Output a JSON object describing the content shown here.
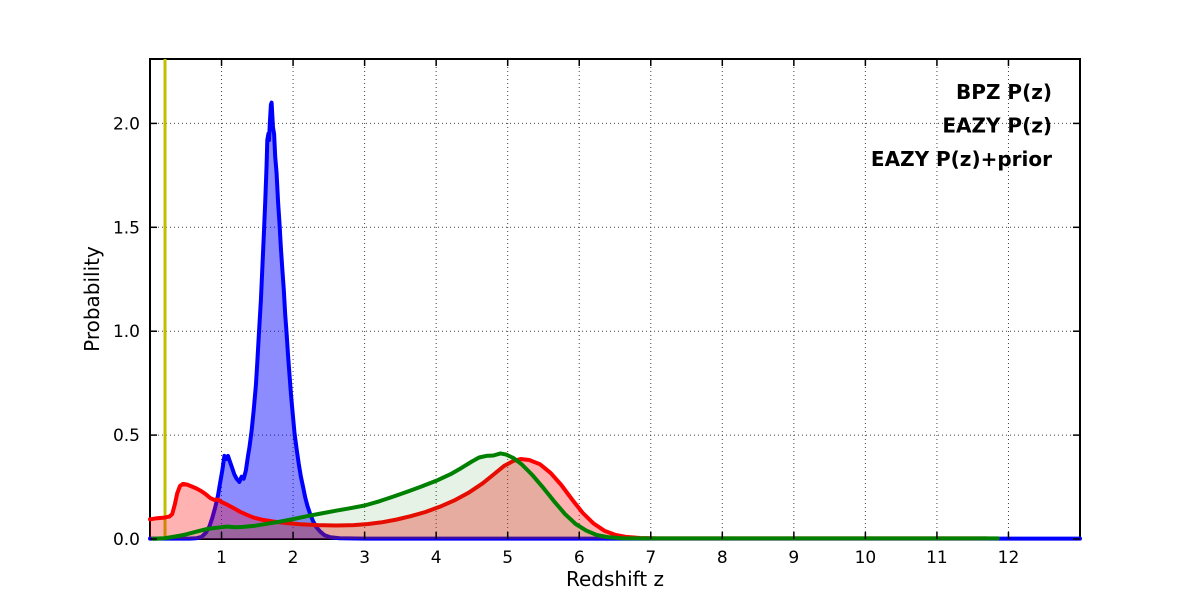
{
  "figure": {
    "background": "#ffffff",
    "frame_color": "#000000",
    "grid_color": "#444444"
  },
  "chart_data": {
    "type": "line",
    "title": "",
    "xlabel": "Redshift z",
    "ylabel": "Probability",
    "xlim": [
      0,
      13
    ],
    "ylim": [
      0,
      2.31
    ],
    "xticks": [
      1,
      2,
      3,
      4,
      5,
      6,
      7,
      8,
      9,
      10,
      11,
      12
    ],
    "yticks": [
      0.0,
      0.5,
      1.0,
      1.5,
      2.0
    ],
    "ytick_labels": [
      "0.0",
      "0.5",
      "1.0",
      "1.5",
      "2.0"
    ],
    "grid": "dotted",
    "legend_position": "top-right-inside-no-frame",
    "vline": {
      "x": 0.21,
      "color": "#bfbf00",
      "width": 3
    },
    "series": [
      {
        "name": "BPZ P(z)",
        "slug": "bpz-pz",
        "color": "#0000ff",
        "fill_opacity": 0.45,
        "line_width": 4,
        "points": [
          [
            0.0,
            0.002
          ],
          [
            0.55,
            0.002
          ],
          [
            0.65,
            0.004
          ],
          [
            0.72,
            0.01
          ],
          [
            0.78,
            0.03
          ],
          [
            0.83,
            0.06
          ],
          [
            0.87,
            0.1
          ],
          [
            0.91,
            0.15
          ],
          [
            0.95,
            0.21
          ],
          [
            0.98,
            0.27
          ],
          [
            1.01,
            0.33
          ],
          [
            1.04,
            0.4
          ],
          [
            1.07,
            0.385
          ],
          [
            1.09,
            0.4
          ],
          [
            1.12,
            0.37
          ],
          [
            1.15,
            0.34
          ],
          [
            1.18,
            0.31
          ],
          [
            1.21,
            0.29
          ],
          [
            1.25,
            0.275
          ],
          [
            1.28,
            0.3
          ],
          [
            1.31,
            0.29
          ],
          [
            1.34,
            0.33
          ],
          [
            1.37,
            0.4
          ],
          [
            1.39,
            0.44
          ],
          [
            1.42,
            0.52
          ],
          [
            1.45,
            0.62
          ],
          [
            1.48,
            0.74
          ],
          [
            1.5,
            0.85
          ],
          [
            1.52,
            0.97
          ],
          [
            1.55,
            1.15
          ],
          [
            1.57,
            1.3
          ],
          [
            1.59,
            1.45
          ],
          [
            1.61,
            1.62
          ],
          [
            1.63,
            1.8
          ],
          [
            1.64,
            1.92
          ],
          [
            1.655,
            1.95
          ],
          [
            1.665,
            1.92
          ],
          [
            1.675,
            2.0
          ],
          [
            1.69,
            2.09
          ],
          [
            1.7,
            2.1
          ],
          [
            1.71,
            2.04
          ],
          [
            1.72,
            1.98
          ],
          [
            1.735,
            1.95
          ],
          [
            1.75,
            1.84
          ],
          [
            1.77,
            1.76
          ],
          [
            1.79,
            1.62
          ],
          [
            1.81,
            1.52
          ],
          [
            1.83,
            1.4
          ],
          [
            1.85,
            1.3
          ],
          [
            1.87,
            1.2
          ],
          [
            1.89,
            1.08
          ],
          [
            1.91,
            0.99
          ],
          [
            1.93,
            0.88
          ],
          [
            1.95,
            0.79
          ],
          [
            1.97,
            0.7
          ],
          [
            1.99,
            0.62
          ],
          [
            2.02,
            0.51
          ],
          [
            2.05,
            0.43
          ],
          [
            2.08,
            0.36
          ],
          [
            2.11,
            0.3
          ],
          [
            2.14,
            0.25
          ],
          [
            2.17,
            0.2
          ],
          [
            2.2,
            0.16
          ],
          [
            2.24,
            0.12
          ],
          [
            2.28,
            0.085
          ],
          [
            2.33,
            0.055
          ],
          [
            2.38,
            0.035
          ],
          [
            2.44,
            0.018
          ],
          [
            2.52,
            0.008
          ],
          [
            2.65,
            0.004
          ],
          [
            3.0,
            0.002
          ],
          [
            13.0,
            0.002
          ]
        ]
      },
      {
        "name": "EAZY P(z)",
        "slug": "eazy-pz",
        "color": "#ff0000",
        "fill_opacity": 0.3,
        "line_width": 4,
        "points": [
          [
            0.0,
            0.095
          ],
          [
            0.1,
            0.1
          ],
          [
            0.2,
            0.103
          ],
          [
            0.27,
            0.108
          ],
          [
            0.31,
            0.12
          ],
          [
            0.35,
            0.17
          ],
          [
            0.38,
            0.22
          ],
          [
            0.42,
            0.255
          ],
          [
            0.46,
            0.265
          ],
          [
            0.52,
            0.262
          ],
          [
            0.58,
            0.253
          ],
          [
            0.65,
            0.243
          ],
          [
            0.72,
            0.23
          ],
          [
            0.78,
            0.215
          ],
          [
            0.84,
            0.198
          ],
          [
            0.9,
            0.188
          ],
          [
            0.95,
            0.19
          ],
          [
            1.0,
            0.178
          ],
          [
            1.08,
            0.165
          ],
          [
            1.16,
            0.15
          ],
          [
            1.25,
            0.133
          ],
          [
            1.35,
            0.117
          ],
          [
            1.45,
            0.103
          ],
          [
            1.58,
            0.092
          ],
          [
            1.72,
            0.084
          ],
          [
            1.9,
            0.077
          ],
          [
            2.1,
            0.071
          ],
          [
            2.35,
            0.067
          ],
          [
            2.6,
            0.065
          ],
          [
            2.85,
            0.067
          ],
          [
            3.05,
            0.072
          ],
          [
            3.25,
            0.081
          ],
          [
            3.45,
            0.094
          ],
          [
            3.65,
            0.11
          ],
          [
            3.85,
            0.13
          ],
          [
            4.05,
            0.155
          ],
          [
            4.25,
            0.185
          ],
          [
            4.45,
            0.222
          ],
          [
            4.65,
            0.268
          ],
          [
            4.82,
            0.315
          ],
          [
            4.95,
            0.352
          ],
          [
            5.08,
            0.376
          ],
          [
            5.18,
            0.385
          ],
          [
            5.3,
            0.38
          ],
          [
            5.45,
            0.36
          ],
          [
            5.6,
            0.318
          ],
          [
            5.75,
            0.26
          ],
          [
            5.9,
            0.19
          ],
          [
            6.05,
            0.125
          ],
          [
            6.2,
            0.075
          ],
          [
            6.35,
            0.04
          ],
          [
            6.5,
            0.02
          ],
          [
            6.65,
            0.01
          ],
          [
            6.85,
            0.005
          ],
          [
            7.1,
            0.003
          ],
          [
            11.7,
            0.003
          ]
        ]
      },
      {
        "name": "EAZY P(z)+prior",
        "slug": "eazy-pz-prior",
        "color": "#008000",
        "fill_opacity": 0.1,
        "line_width": 4,
        "points": [
          [
            0.05,
            0.001
          ],
          [
            0.2,
            0.004
          ],
          [
            0.3,
            0.009
          ],
          [
            0.4,
            0.015
          ],
          [
            0.5,
            0.022
          ],
          [
            0.6,
            0.031
          ],
          [
            0.7,
            0.04
          ],
          [
            0.8,
            0.048
          ],
          [
            0.9,
            0.053
          ],
          [
            1.0,
            0.057
          ],
          [
            1.08,
            0.06
          ],
          [
            1.18,
            0.057
          ],
          [
            1.3,
            0.058
          ],
          [
            1.45,
            0.063
          ],
          [
            1.6,
            0.071
          ],
          [
            1.8,
            0.083
          ],
          [
            2.0,
            0.096
          ],
          [
            2.2,
            0.11
          ],
          [
            2.4,
            0.123
          ],
          [
            2.6,
            0.136
          ],
          [
            2.8,
            0.148
          ],
          [
            3.0,
            0.161
          ],
          [
            3.2,
            0.181
          ],
          [
            3.4,
            0.204
          ],
          [
            3.6,
            0.228
          ],
          [
            3.8,
            0.253
          ],
          [
            4.0,
            0.28
          ],
          [
            4.2,
            0.312
          ],
          [
            4.35,
            0.341
          ],
          [
            4.5,
            0.373
          ],
          [
            4.6,
            0.392
          ],
          [
            4.7,
            0.4
          ],
          [
            4.8,
            0.402
          ],
          [
            4.9,
            0.412
          ],
          [
            4.98,
            0.406
          ],
          [
            5.08,
            0.39
          ],
          [
            5.2,
            0.358
          ],
          [
            5.35,
            0.306
          ],
          [
            5.5,
            0.245
          ],
          [
            5.65,
            0.181
          ],
          [
            5.8,
            0.121
          ],
          [
            5.95,
            0.072
          ],
          [
            6.1,
            0.04
          ],
          [
            6.25,
            0.019
          ],
          [
            6.4,
            0.009
          ],
          [
            6.6,
            0.004
          ],
          [
            6.9,
            0.003
          ],
          [
            11.85,
            0.003
          ]
        ]
      }
    ]
  }
}
